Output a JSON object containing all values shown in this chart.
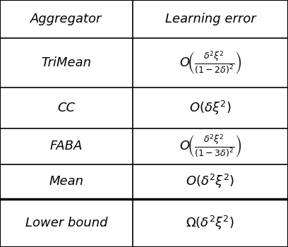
{
  "figsize": [
    4.08,
    3.5
  ],
  "dpi": 100,
  "bg_color": "#ffffff",
  "header": [
    "Aggregator",
    "Learning error"
  ],
  "rows": [
    [
      "TriMean",
      "$O\\!\\left(\\frac{\\delta^2\\xi^2}{(1-2\\delta)^2}\\right)$"
    ],
    [
      "CC",
      "$O(\\delta\\xi^2)$"
    ],
    [
      "FABA",
      "$O\\!\\left(\\frac{\\delta^2\\xi^2}{(1-3\\delta)^2}\\right)$"
    ],
    [
      "Mean",
      "$O(\\delta^2\\xi^2)$"
    ]
  ],
  "footer": [
    "Lower bound",
    "$\\Omega(\\delta^2\\xi^2)$"
  ],
  "col_split": 0.46,
  "header_fontsize": 13,
  "cell_fontsize": 13,
  "footer_fontsize": 13,
  "line_color": "#000000",
  "text_color": "#000000"
}
